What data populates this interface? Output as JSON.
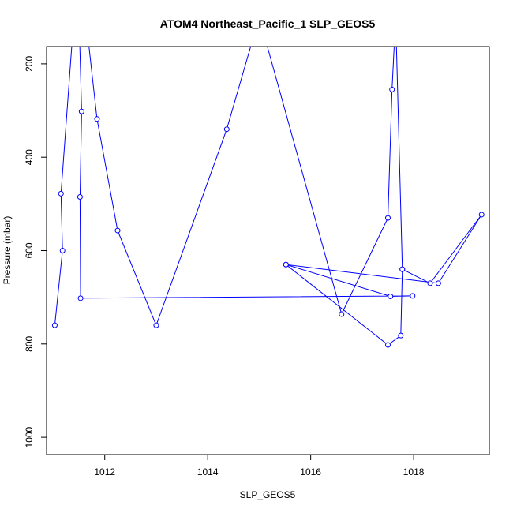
{
  "chart_data": {
    "type": "line",
    "title": "ATOM4 Northeast_Pacific_1 SLP_GEOS5",
    "xlabel": "SLP_GEOS5",
    "ylabel": "Pressure (mbar)",
    "xlim": [
      1010.87,
      1019.47
    ],
    "ylim": [
      1037,
      163
    ],
    "y_reversed": true,
    "x_ticks": [
      1012,
      1014,
      1016,
      1018
    ],
    "y_ticks": [
      200,
      400,
      600,
      800,
      1000
    ],
    "line_color": "#0000ff",
    "series": [
      {
        "points": [
          {
            "x": 1011.03,
            "y": 760
          },
          {
            "x": 1011.18,
            "y": 600
          },
          {
            "x": 1011.15,
            "y": 478
          },
          {
            "x": 1011.4,
            "y": 100
          },
          {
            "x": 1011.5,
            "y": 100
          },
          {
            "x": 1011.55,
            "y": 302
          },
          {
            "x": 1011.52,
            "y": 485
          },
          {
            "x": 1011.53,
            "y": 702
          },
          {
            "x": 1017.98,
            "y": 697
          },
          {
            "x": 1017.55,
            "y": 698
          },
          {
            "x": 1015.52,
            "y": 630
          },
          {
            "x": 1018.48,
            "y": 670
          },
          {
            "x": 1019.32,
            "y": 523
          },
          {
            "x": 1018.32,
            "y": 670
          },
          {
            "x": 1017.78,
            "y": 640
          },
          {
            "x": 1017.65,
            "y": 100
          },
          {
            "x": 1017.58,
            "y": 255
          },
          {
            "x": 1017.5,
            "y": 530
          },
          {
            "x": 1016.6,
            "y": 736
          },
          {
            "x": 1015.0,
            "y": 100
          },
          {
            "x": 1014.37,
            "y": 340
          },
          {
            "x": 1013.0,
            "y": 760
          },
          {
            "x": 1012.25,
            "y": 557
          },
          {
            "x": 1011.85,
            "y": 318
          },
          {
            "x": 1011.63,
            "y": 100
          }
        ]
      },
      {
        "points": [
          {
            "x": 1015.52,
            "y": 630
          },
          {
            "x": 1017.5,
            "y": 802
          },
          {
            "x": 1017.75,
            "y": 782
          },
          {
            "x": 1017.78,
            "y": 640
          }
        ]
      }
    ]
  }
}
